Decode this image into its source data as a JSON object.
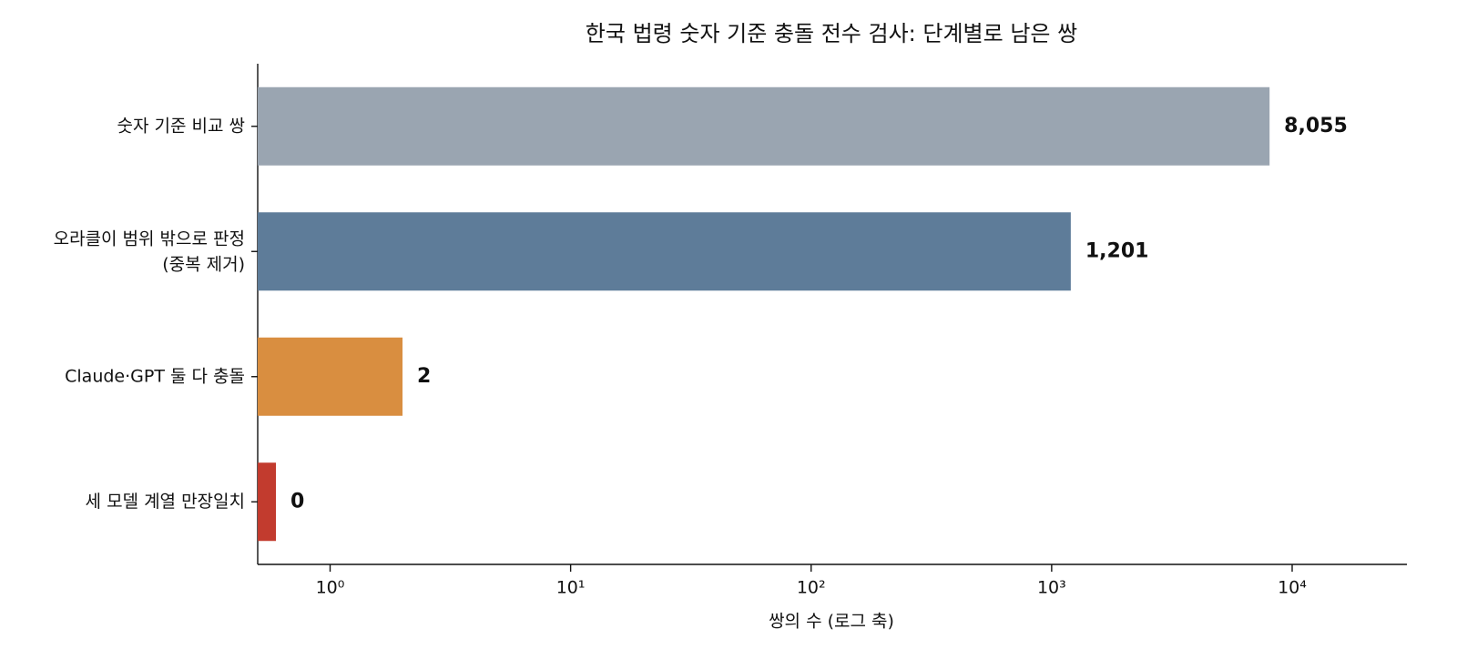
{
  "chart_data": {
    "type": "bar",
    "orientation": "horizontal",
    "title": "한국 법령 숫자 기준 충돌 전수 검사: 단계별로 남은 쌍",
    "x_label": "쌍의 수 (로그 축)",
    "categories": [
      "숫자 기준 비교 쌍",
      "오라클이 범위 밖으로 판정\n(중복 제거)",
      "Claude·GPT 둘 다 충돌",
      "세 모델 계열 만장일치"
    ],
    "values": [
      8055,
      1201,
      2,
      0
    ],
    "value_labels": [
      "8,055",
      "1,201",
      "2",
      "0"
    ],
    "colors": [
      "#9aa5b1",
      "#5e7c99",
      "#d98e40",
      "#c23b2e"
    ],
    "x_scale": "log",
    "xlim": [
      0.5,
      30000
    ],
    "xticks": [
      {
        "value": 1,
        "label": "10⁰"
      },
      {
        "value": 10,
        "label": "10¹"
      },
      {
        "value": 100,
        "label": "10²"
      },
      {
        "value": 1000,
        "label": "10³"
      },
      {
        "value": 10000,
        "label": "10⁴"
      }
    ],
    "grid": false
  }
}
